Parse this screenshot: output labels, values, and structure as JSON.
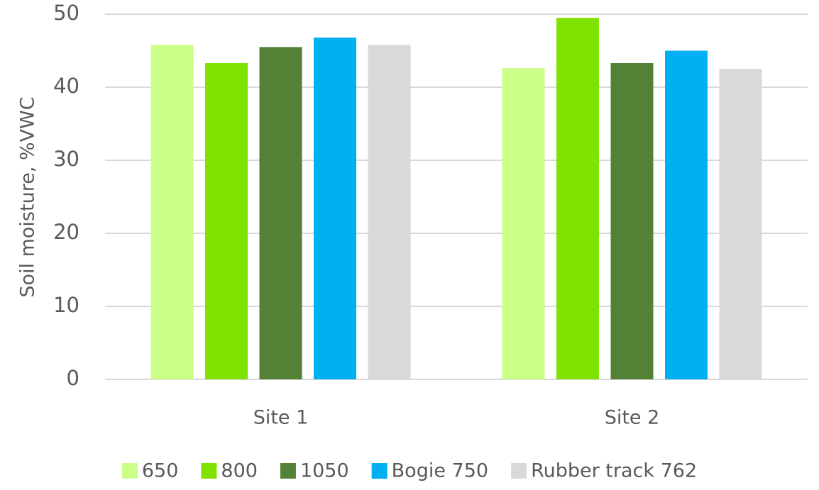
{
  "chart_data": {
    "type": "bar",
    "y_label": "Soil moisture, %VWC",
    "categories": [
      "Site 1",
      "Site 2"
    ],
    "series": [
      {
        "name": "650",
        "color": "#ccff88",
        "values": [
          45.8,
          42.6
        ]
      },
      {
        "name": "800",
        "color": "#7fe200",
        "values": [
          43.3,
          49.5
        ]
      },
      {
        "name": "1050",
        "color": "#538135",
        "values": [
          45.5,
          43.3
        ]
      },
      {
        "name": "Bogie 750",
        "color": "#00b0f0",
        "values": [
          46.8,
          45.0
        ]
      },
      {
        "name": "Rubber track 762",
        "color": "#d9d9d9",
        "values": [
          45.8,
          42.5
        ]
      }
    ],
    "ylim": [
      0,
      50
    ],
    "yticks": [
      0,
      10,
      20,
      30,
      40,
      50
    ],
    "grid": true,
    "legend": "bottom"
  }
}
